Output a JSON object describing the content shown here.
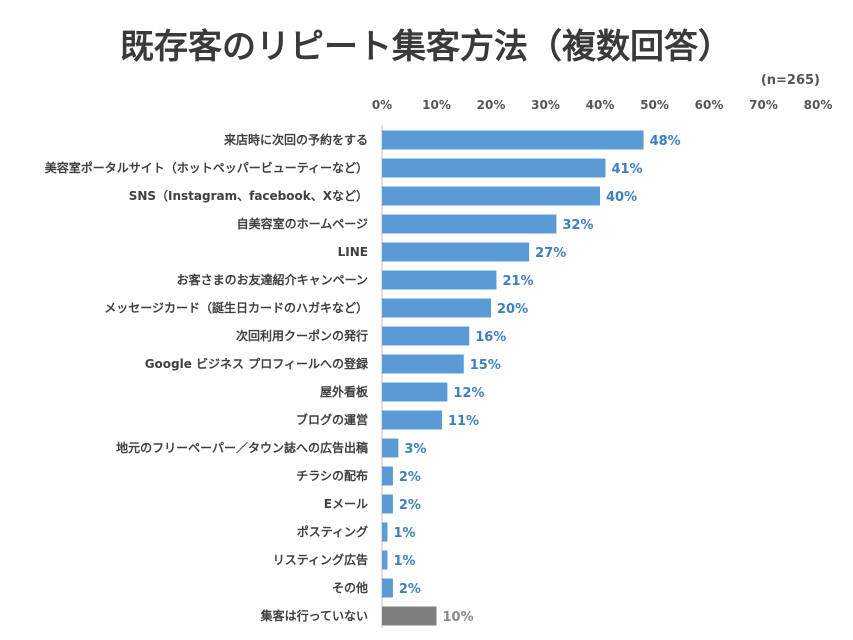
{
  "chart_data": {
    "type": "bar",
    "orientation": "horizontal",
    "title": "既存客のリピート集客方法（複数回答）",
    "note": "(n=265)",
    "xlim": [
      0,
      80
    ],
    "x_ticks": [
      "0%",
      "10%",
      "20%",
      "30%",
      "40%",
      "50%",
      "60%",
      "70%",
      "80%"
    ],
    "x_tick_values": [
      0,
      10,
      20,
      30,
      40,
      50,
      60,
      70,
      80
    ],
    "x_axis_position": "top",
    "grid": false,
    "categories": [
      "来店時に次回の予約をする",
      "美容室ポータルサイト（ホットペッパービューティーなど）",
      "SNS（Instagram、facebook、Xなど）",
      "自美容室のホームページ",
      "LINE",
      "お客さまのお友達紹介キャンペーン",
      "メッセージカード（誕生日カードのハガキなど）",
      "次回利用クーポンの発行",
      "Google ビジネス プロフィールへの登録",
      "屋外看板",
      "ブログの運営",
      "地元のフリーペーパー／タウン誌への広告出稿",
      "チラシの配布",
      "Eメール",
      "ポスティング",
      "リスティング広告",
      "その他",
      "集客は行っていない"
    ],
    "values": [
      48,
      41,
      40,
      32,
      27,
      21,
      20,
      16,
      15,
      12,
      11,
      3,
      2,
      2,
      1,
      1,
      2,
      10
    ],
    "value_labels": [
      "48%",
      "41%",
      "40%",
      "32%",
      "27%",
      "21%",
      "20%",
      "16%",
      "15%",
      "12%",
      "11%",
      "3%",
      "2%",
      "2%",
      "1%",
      "1%",
      "2%",
      "10%"
    ],
    "bar_colors": [
      "#5b9bd5",
      "#5b9bd5",
      "#5b9bd5",
      "#5b9bd5",
      "#5b9bd5",
      "#5b9bd5",
      "#5b9bd5",
      "#5b9bd5",
      "#5b9bd5",
      "#5b9bd5",
      "#5b9bd5",
      "#5b9bd5",
      "#5b9bd5",
      "#5b9bd5",
      "#5b9bd5",
      "#5b9bd5",
      "#5b9bd5",
      "#7f7f7f"
    ],
    "label_colors": [
      "#3f7fbf",
      "#3f7fbf",
      "#3f7fbf",
      "#3f7fbf",
      "#3f7fbf",
      "#3f7fbf",
      "#3f7fbf",
      "#3f7fbf",
      "#3f7fbf",
      "#3f7fbf",
      "#3f7fbf",
      "#3f7fbf",
      "#3f7fbf",
      "#3f7fbf",
      "#3f7fbf",
      "#3f7fbf",
      "#3f7fbf",
      "#8a8a8a"
    ],
    "axis_color": "#bfbfbf"
  }
}
